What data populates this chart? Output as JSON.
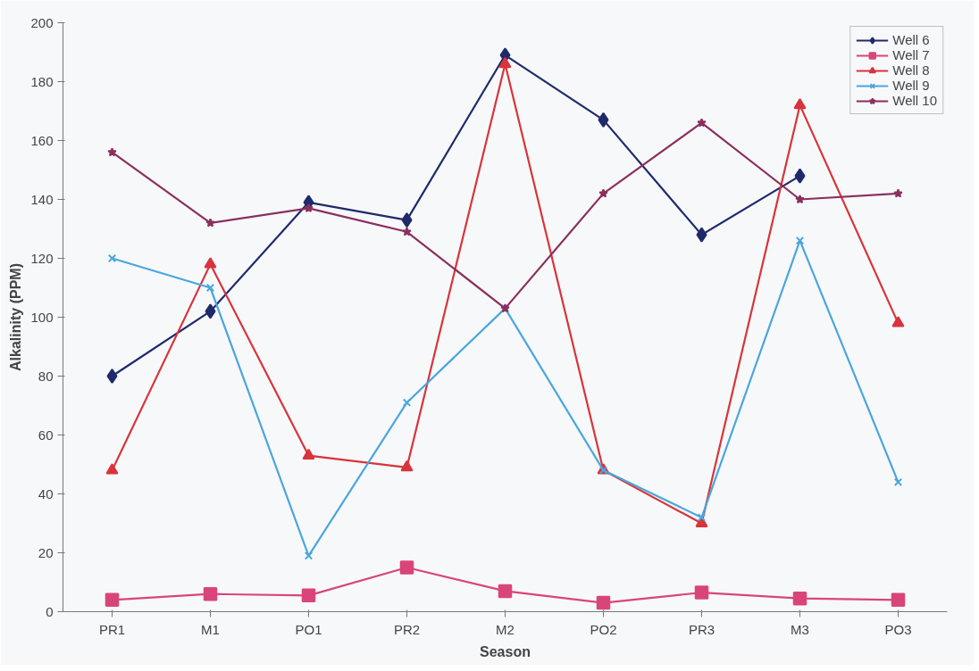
{
  "chart_data": {
    "type": "line",
    "xlabel": "Season",
    "ylabel": "Alkalinity (PPM)",
    "categories": [
      "PR1",
      "M1",
      "PO1",
      "PR2",
      "M2",
      "PO2",
      "PR3",
      "M3",
      "PO3"
    ],
    "ylim": [
      0,
      200
    ],
    "yticks": [
      0,
      20,
      40,
      60,
      80,
      100,
      120,
      140,
      160,
      180,
      200
    ],
    "grid": false,
    "legend": "top right",
    "line_style": "solid",
    "series": [
      {
        "name": "Well 6",
        "color": "#1f2a6b",
        "marker": "diamond",
        "values": [
          80,
          102,
          139,
          133,
          189,
          167,
          128,
          148,
          null
        ]
      },
      {
        "name": "Well 7",
        "color": "#d9457a",
        "marker": "square",
        "values": [
          4,
          6,
          5.5,
          15,
          7,
          3,
          6.5,
          4.5,
          4
        ]
      },
      {
        "name": "Well 8",
        "color": "#d8343a",
        "marker": "triangle",
        "values": [
          48,
          118,
          53,
          49,
          186,
          48,
          30,
          172,
          98
        ]
      },
      {
        "name": "Well 9",
        "color": "#4aa6de",
        "marker": "cross",
        "values": [
          120,
          110,
          19,
          71,
          103,
          48,
          32,
          126,
          44
        ]
      },
      {
        "name": "Well 10",
        "color": "#8b2f5e",
        "marker": "star",
        "values": [
          156,
          132,
          137,
          129,
          103,
          142,
          166,
          140,
          142
        ]
      }
    ]
  }
}
